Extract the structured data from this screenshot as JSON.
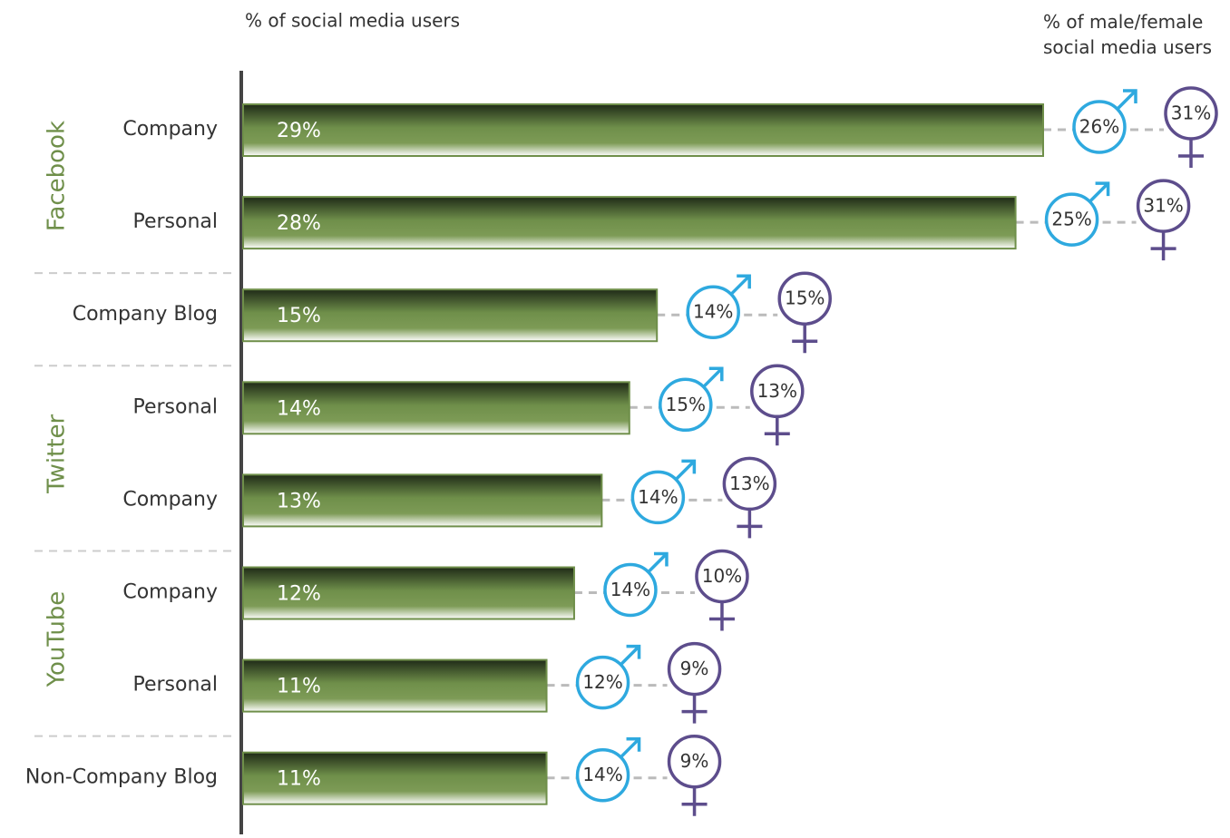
{
  "chart_data": {
    "type": "bar",
    "axis_label": "% of social media users",
    "gender_label": "% of male/female social media users",
    "categories": [
      "Company",
      "Personal",
      "Company Blog",
      "Personal",
      "Company",
      "Company",
      "Personal",
      "Non-Company Blog"
    ],
    "category_groups": [
      "Facebook",
      "Facebook",
      null,
      "Twitter",
      "Twitter",
      "YouTube",
      "YouTube",
      null
    ],
    "values": [
      29,
      28,
      15,
      14,
      13,
      12,
      11,
      11
    ],
    "value_labels": [
      "29%",
      "28%",
      "15%",
      "14%",
      "13%",
      "12%",
      "11%",
      "11%"
    ],
    "color": "#6f8f4a",
    "series": [
      {
        "name": "male",
        "color": "#2ea9df",
        "values": [
          26,
          25,
          14,
          15,
          14,
          14,
          12,
          14
        ],
        "value_labels": [
          "26%",
          "25%",
          "14%",
          "15%",
          "14%",
          "14%",
          "12%",
          "14%"
        ]
      },
      {
        "name": "female",
        "color": "#5d4d8c",
        "values": [
          31,
          31,
          15,
          13,
          13,
          10,
          9,
          9
        ],
        "value_labels": [
          "31%",
          "31%",
          "15%",
          "13%",
          "13%",
          "10%",
          "9%",
          "9%"
        ]
      }
    ]
  }
}
